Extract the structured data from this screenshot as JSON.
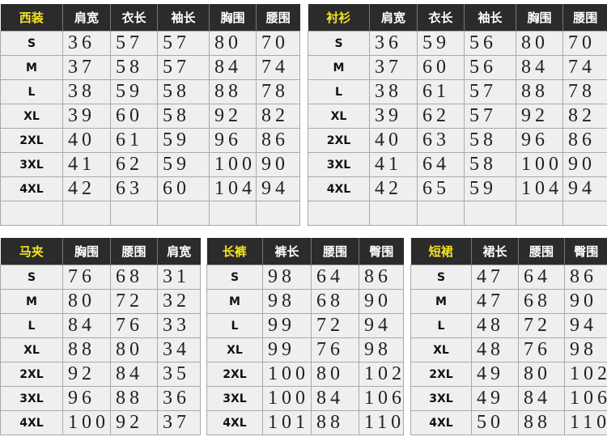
{
  "colors": {
    "header_bg": "#2b2b2b",
    "title_text": "#f2e422",
    "header_text": "#ffffff",
    "cell_bg": "#efefef"
  },
  "tables": [
    {
      "title": "西装",
      "columns": [
        "肩宽",
        "衣长",
        "袖长",
        "胸围",
        "腰围"
      ],
      "rows": [
        {
          "size": "S",
          "values": [
            "36",
            "57",
            "57",
            "80",
            "70"
          ]
        },
        {
          "size": "M",
          "values": [
            "37",
            "58",
            "57",
            "84",
            "74"
          ]
        },
        {
          "size": "L",
          "values": [
            "38",
            "59",
            "58",
            "88",
            "78"
          ]
        },
        {
          "size": "XL",
          "values": [
            "39",
            "60",
            "58",
            "92",
            "82"
          ]
        },
        {
          "size": "2XL",
          "values": [
            "40",
            "61",
            "59",
            "96",
            "86"
          ]
        },
        {
          "size": "3XL",
          "values": [
            "41",
            "62",
            "59",
            "100",
            "90"
          ]
        },
        {
          "size": "4XL",
          "values": [
            "42",
            "63",
            "60",
            "104",
            "94"
          ]
        },
        {
          "size": "",
          "values": [
            "",
            "",
            "",
            "",
            ""
          ]
        }
      ]
    },
    {
      "title": "衬衫",
      "columns": [
        "肩宽",
        "衣长",
        "袖长",
        "胸围",
        "腰围"
      ],
      "rows": [
        {
          "size": "S",
          "values": [
            "36",
            "59",
            "56",
            "80",
            "70"
          ]
        },
        {
          "size": "M",
          "values": [
            "37",
            "60",
            "56",
            "84",
            "74"
          ]
        },
        {
          "size": "L",
          "values": [
            "38",
            "61",
            "57",
            "88",
            "78"
          ]
        },
        {
          "size": "XL",
          "values": [
            "39",
            "62",
            "57",
            "92",
            "82"
          ]
        },
        {
          "size": "2XL",
          "values": [
            "40",
            "63",
            "58",
            "96",
            "86"
          ]
        },
        {
          "size": "3XL",
          "values": [
            "41",
            "64",
            "58",
            "100",
            "90"
          ]
        },
        {
          "size": "4XL",
          "values": [
            "42",
            "65",
            "59",
            "104",
            "94"
          ]
        },
        {
          "size": "",
          "values": [
            "",
            "",
            "",
            "",
            ""
          ]
        }
      ]
    },
    {
      "title": "马夹",
      "columns": [
        "胸围",
        "腰围",
        "肩宽"
      ],
      "rows": [
        {
          "size": "S",
          "values": [
            "76",
            "68",
            "31"
          ]
        },
        {
          "size": "M",
          "values": [
            "80",
            "72",
            "32"
          ]
        },
        {
          "size": "L",
          "values": [
            "84",
            "76",
            "33"
          ]
        },
        {
          "size": "XL",
          "values": [
            "88",
            "80",
            "34"
          ]
        },
        {
          "size": "2XL",
          "values": [
            "92",
            "84",
            "35"
          ]
        },
        {
          "size": "3XL",
          "values": [
            "96",
            "88",
            "36"
          ]
        },
        {
          "size": "4XL",
          "values": [
            "100",
            "92",
            "37"
          ]
        }
      ]
    },
    {
      "title": "长裤",
      "columns": [
        "裤长",
        "腰围",
        "臀围"
      ],
      "rows": [
        {
          "size": "S",
          "values": [
            "98",
            "64",
            "86"
          ]
        },
        {
          "size": "M",
          "values": [
            "98",
            "68",
            "90"
          ]
        },
        {
          "size": "L",
          "values": [
            "99",
            "72",
            "94"
          ]
        },
        {
          "size": "XL",
          "values": [
            "99",
            "76",
            "98"
          ]
        },
        {
          "size": "2XL",
          "values": [
            "100",
            "80",
            "102"
          ]
        },
        {
          "size": "3XL",
          "values": [
            "100",
            "84",
            "106"
          ]
        },
        {
          "size": "4XL",
          "values": [
            "101",
            "88",
            "110"
          ]
        }
      ]
    },
    {
      "title": "短裙",
      "columns": [
        "裙长",
        "腰围",
        "臀围"
      ],
      "rows": [
        {
          "size": "S",
          "values": [
            "47",
            "64",
            "86"
          ]
        },
        {
          "size": "M",
          "values": [
            "47",
            "68",
            "90"
          ]
        },
        {
          "size": "L",
          "values": [
            "48",
            "72",
            "94"
          ]
        },
        {
          "size": "XL",
          "values": [
            "48",
            "76",
            "98"
          ]
        },
        {
          "size": "2XL",
          "values": [
            "49",
            "80",
            "102"
          ]
        },
        {
          "size": "3XL",
          "values": [
            "49",
            "84",
            "106"
          ]
        },
        {
          "size": "4XL",
          "values": [
            "50",
            "88",
            "110"
          ]
        }
      ]
    }
  ]
}
